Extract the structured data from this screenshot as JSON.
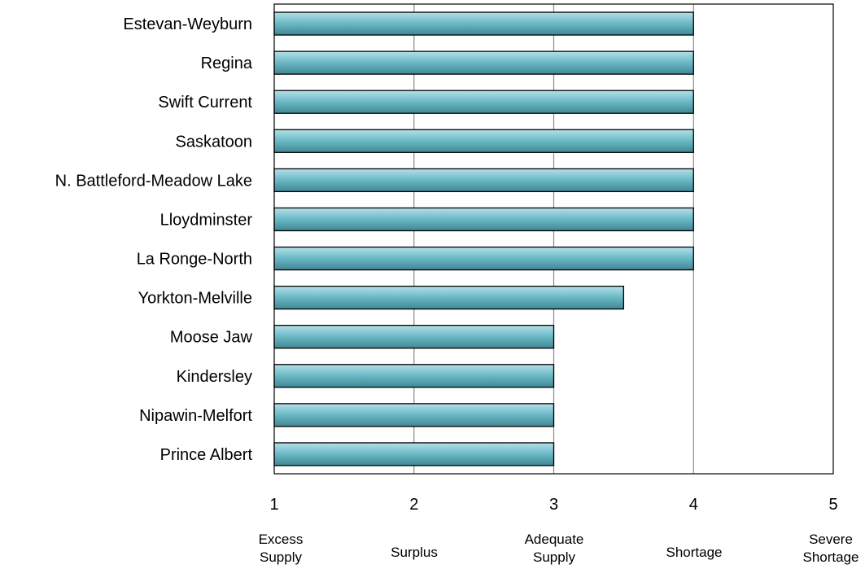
{
  "chart_data": {
    "type": "bar",
    "orientation": "horizontal",
    "categories": [
      "Estevan-Weyburn",
      "Regina",
      "Swift Current",
      "Saskatoon",
      "N. Battleford-Meadow Lake",
      "Lloydminster",
      "La Ronge-North",
      "Yorkton-Melville",
      "Moose Jaw",
      "Kindersley",
      "Nipawin-Melfort",
      "Prince Albert"
    ],
    "values": [
      4,
      4,
      4,
      4,
      4,
      4,
      4,
      3.5,
      3,
      3,
      3,
      3
    ],
    "xlim": [
      1,
      5
    ],
    "x_ticks": [
      "1",
      "2",
      "3",
      "4",
      "5"
    ],
    "x_tick_descriptions": [
      [
        "Excess",
        "Supply"
      ],
      [
        "Surplus"
      ],
      [
        "Adequate",
        "Supply"
      ],
      [
        "Shortage"
      ],
      [
        "Severe",
        "Shortage"
      ]
    ],
    "grid": "vertical",
    "legend": "none",
    "colors": {
      "bar_light": "#b6e0e8",
      "bar_mid": "#6fbcc9",
      "bar_dark": "#3f8794",
      "bar_stroke": "#000000",
      "gridline": "#8c8c8c",
      "frame": "#000000"
    }
  }
}
